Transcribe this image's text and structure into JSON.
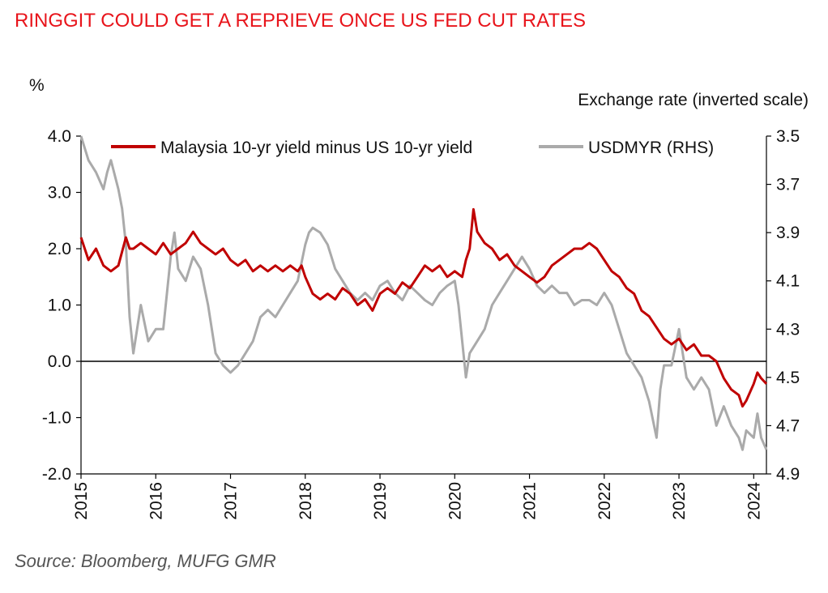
{
  "title": "RINGGIT COULD GET A REPRIEVE ONCE US FED CUT RATES",
  "source": "Source: Bloomberg, MUFG GMR",
  "chart_data": {
    "type": "line",
    "y_left_label": "%",
    "y_right_label": "Exchange rate (inverted scale)",
    "y_left_range": [
      -2.0,
      4.0
    ],
    "y_left_ticks": [
      "4.0",
      "3.0",
      "2.0",
      "1.0",
      "0.0",
      "-1.0",
      "-2.0"
    ],
    "y_right_range": [
      3.5,
      4.9
    ],
    "y_right_inverted": true,
    "y_right_ticks": [
      "3.5",
      "3.7",
      "3.9",
      "4.1",
      "4.3",
      "4.5",
      "4.7",
      "4.9"
    ],
    "x_range": [
      2015.0,
      2024.17
    ],
    "x_ticks": [
      "2015",
      "2016",
      "2017",
      "2018",
      "2019",
      "2020",
      "2021",
      "2022",
      "2023",
      "2024"
    ],
    "zero_line": 0.0,
    "legend_position": "top",
    "series": [
      {
        "name": "Malaysia 10-yr yield minus US 10-yr yield",
        "axis": "left",
        "color": "#c00000",
        "x": [
          2015.0,
          2015.05,
          2015.1,
          2015.2,
          2015.3,
          2015.4,
          2015.5,
          2015.6,
          2015.65,
          2015.7,
          2015.8,
          2015.9,
          2016.0,
          2016.1,
          2016.2,
          2016.3,
          2016.4,
          2016.5,
          2016.6,
          2016.7,
          2016.8,
          2016.9,
          2017.0,
          2017.1,
          2017.2,
          2017.3,
          2017.4,
          2017.5,
          2017.6,
          2017.7,
          2017.8,
          2017.9,
          2017.95,
          2018.0,
          2018.1,
          2018.2,
          2018.3,
          2018.4,
          2018.5,
          2018.6,
          2018.7,
          2018.8,
          2018.9,
          2019.0,
          2019.1,
          2019.2,
          2019.3,
          2019.4,
          2019.5,
          2019.6,
          2019.7,
          2019.8,
          2019.9,
          2020.0,
          2020.1,
          2020.15,
          2020.2,
          2020.25,
          2020.3,
          2020.4,
          2020.5,
          2020.6,
          2020.7,
          2020.8,
          2020.9,
          2021.0,
          2021.1,
          2021.2,
          2021.3,
          2021.4,
          2021.5,
          2021.6,
          2021.7,
          2021.8,
          2021.9,
          2022.0,
          2022.1,
          2022.2,
          2022.3,
          2022.4,
          2022.5,
          2022.6,
          2022.7,
          2022.8,
          2022.9,
          2023.0,
          2023.1,
          2023.2,
          2023.3,
          2023.4,
          2023.5,
          2023.6,
          2023.7,
          2023.8,
          2023.85,
          2023.9,
          2024.0,
          2024.05,
          2024.1,
          2024.17
        ],
        "y": [
          2.2,
          2.0,
          1.8,
          2.0,
          1.7,
          1.6,
          1.7,
          2.2,
          2.0,
          2.0,
          2.1,
          2.0,
          1.9,
          2.1,
          1.9,
          2.0,
          2.1,
          2.3,
          2.1,
          2.0,
          1.9,
          2.0,
          1.8,
          1.7,
          1.8,
          1.6,
          1.7,
          1.6,
          1.7,
          1.6,
          1.7,
          1.6,
          1.7,
          1.5,
          1.2,
          1.1,
          1.2,
          1.1,
          1.3,
          1.2,
          1.0,
          1.1,
          0.9,
          1.2,
          1.3,
          1.2,
          1.4,
          1.3,
          1.5,
          1.7,
          1.6,
          1.7,
          1.5,
          1.6,
          1.5,
          1.8,
          2.0,
          2.7,
          2.3,
          2.1,
          2.0,
          1.8,
          1.9,
          1.7,
          1.6,
          1.5,
          1.4,
          1.5,
          1.7,
          1.8,
          1.9,
          2.0,
          2.0,
          2.1,
          2.0,
          1.8,
          1.6,
          1.5,
          1.3,
          1.2,
          0.9,
          0.8,
          0.6,
          0.4,
          0.3,
          0.4,
          0.2,
          0.3,
          0.1,
          0.1,
          0.0,
          -0.3,
          -0.5,
          -0.6,
          -0.8,
          -0.7,
          -0.4,
          -0.2,
          -0.3,
          -0.4
        ]
      },
      {
        "name": "USDMYR (RHS)",
        "axis": "right",
        "color": "#aaaaaa",
        "x": [
          2015.0,
          2015.05,
          2015.1,
          2015.2,
          2015.3,
          2015.35,
          2015.4,
          2015.5,
          2015.55,
          2015.6,
          2015.65,
          2015.7,
          2015.75,
          2015.8,
          2015.9,
          2016.0,
          2016.1,
          2016.2,
          2016.25,
          2016.3,
          2016.4,
          2016.5,
          2016.6,
          2016.7,
          2016.8,
          2016.9,
          2017.0,
          2017.1,
          2017.2,
          2017.3,
          2017.4,
          2017.5,
          2017.6,
          2017.7,
          2017.8,
          2017.9,
          2018.0,
          2018.05,
          2018.1,
          2018.2,
          2018.3,
          2018.35,
          2018.4,
          2018.5,
          2018.6,
          2018.7,
          2018.8,
          2018.9,
          2019.0,
          2019.1,
          2019.2,
          2019.3,
          2019.4,
          2019.5,
          2019.6,
          2019.7,
          2019.8,
          2019.9,
          2020.0,
          2020.05,
          2020.1,
          2020.15,
          2020.2,
          2020.3,
          2020.4,
          2020.5,
          2020.6,
          2020.7,
          2020.8,
          2020.9,
          2021.0,
          2021.1,
          2021.2,
          2021.3,
          2021.4,
          2021.5,
          2021.6,
          2021.7,
          2021.8,
          2021.9,
          2022.0,
          2022.1,
          2022.2,
          2022.3,
          2022.4,
          2022.5,
          2022.55,
          2022.6,
          2022.7,
          2022.75,
          2022.8,
          2022.85,
          2022.9,
          2023.0,
          2023.05,
          2023.1,
          2023.2,
          2023.3,
          2023.4,
          2023.5,
          2023.6,
          2023.7,
          2023.8,
          2023.85,
          2023.9,
          2024.0,
          2024.05,
          2024.1,
          2024.17
        ],
        "y": [
          3.5,
          3.55,
          3.6,
          3.65,
          3.72,
          3.65,
          3.6,
          3.72,
          3.8,
          3.95,
          4.25,
          4.4,
          4.3,
          4.2,
          4.35,
          4.3,
          4.3,
          4.0,
          3.9,
          4.05,
          4.1,
          4.0,
          4.05,
          4.2,
          4.4,
          4.45,
          4.48,
          4.45,
          4.4,
          4.35,
          4.25,
          4.22,
          4.25,
          4.2,
          4.15,
          4.1,
          3.95,
          3.9,
          3.88,
          3.9,
          3.95,
          4.0,
          4.05,
          4.1,
          4.15,
          4.18,
          4.15,
          4.18,
          4.12,
          4.1,
          4.15,
          4.18,
          4.12,
          4.15,
          4.18,
          4.2,
          4.15,
          4.12,
          4.1,
          4.2,
          4.35,
          4.5,
          4.4,
          4.35,
          4.3,
          4.2,
          4.15,
          4.1,
          4.05,
          4.0,
          4.05,
          4.12,
          4.15,
          4.12,
          4.15,
          4.15,
          4.2,
          4.18,
          4.18,
          4.2,
          4.15,
          4.2,
          4.3,
          4.4,
          4.45,
          4.5,
          4.55,
          4.6,
          4.75,
          4.55,
          4.45,
          4.45,
          4.45,
          4.3,
          4.4,
          4.5,
          4.55,
          4.5,
          4.55,
          4.7,
          4.62,
          4.7,
          4.75,
          4.8,
          4.72,
          4.75,
          4.65,
          4.75,
          4.8
        ]
      }
    ]
  }
}
